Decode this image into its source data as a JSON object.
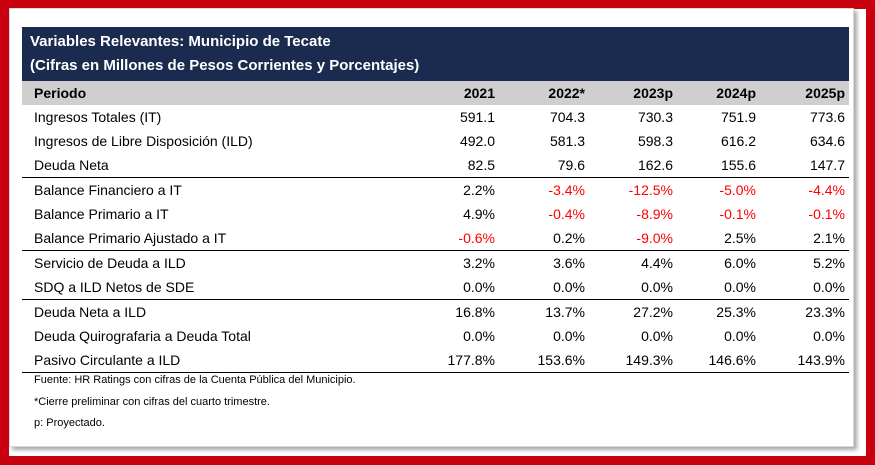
{
  "title": {
    "line1": "Variables Relevantes: Municipio de Tecate",
    "line2": "(Cifras en Millones de Pesos Corrientes y Porcentajes)"
  },
  "header": [
    "Periodo",
    "2021",
    "2022*",
    "2023p",
    "2024p",
    "2025p"
  ],
  "rows": [
    {
      "label": "Ingresos Totales (IT)",
      "values": [
        "591.1",
        "704.3",
        "730.3",
        "751.9",
        "773.6"
      ]
    },
    {
      "label": "Ingresos de Libre Disposición (ILD)",
      "values": [
        "492.0",
        "581.3",
        "598.3",
        "616.2",
        "634.6"
      ]
    },
    {
      "label": "Deuda Neta",
      "values": [
        "82.5",
        "79.6",
        "162.6",
        "155.6",
        "147.7"
      ]
    },
    {
      "label": "Balance Financiero a IT",
      "values": [
        "2.2%",
        "-3.4%",
        "-12.5%",
        "-5.0%",
        "-4.4%"
      ]
    },
    {
      "label": "Balance Primario a IT",
      "values": [
        "4.9%",
        "-0.4%",
        "-8.9%",
        "-0.1%",
        "-0.1%"
      ]
    },
    {
      "label": "Balance Primario Ajustado a IT",
      "values": [
        "-0.6%",
        "0.2%",
        "-9.0%",
        "2.5%",
        "2.1%"
      ]
    },
    {
      "label": "Servicio de Deuda a ILD",
      "values": [
        "3.2%",
        "3.6%",
        "4.4%",
        "6.0%",
        "5.2%"
      ]
    },
    {
      "label": "SDQ a ILD Netos de SDE",
      "values": [
        "0.0%",
        "0.0%",
        "0.0%",
        "0.0%",
        "0.0%"
      ]
    },
    {
      "label": "Deuda Neta a ILD",
      "values": [
        "16.8%",
        "13.7%",
        "27.2%",
        "25.3%",
        "23.3%"
      ]
    },
    {
      "label": "Deuda Quirografaria a Deuda Total",
      "values": [
        "0.0%",
        "0.0%",
        "0.0%",
        "0.0%",
        "0.0%"
      ]
    },
    {
      "label": "Pasivo Circulante a ILD",
      "values": [
        "177.8%",
        "153.6%",
        "149.3%",
        "146.6%",
        "143.9%"
      ]
    }
  ],
  "notes": {
    "source": "Fuente: HR Ratings con cifras de la Cuenta Pública del Municipio.",
    "preliminary": "*Cierre preliminar con cifras del cuarto trimestre.",
    "projected": "p: Proyectado."
  },
  "colors": {
    "frame": "#c8000e",
    "title_bg": "#1a2b4f",
    "header_bg": "#d0cece",
    "negative": "#ff0000"
  }
}
